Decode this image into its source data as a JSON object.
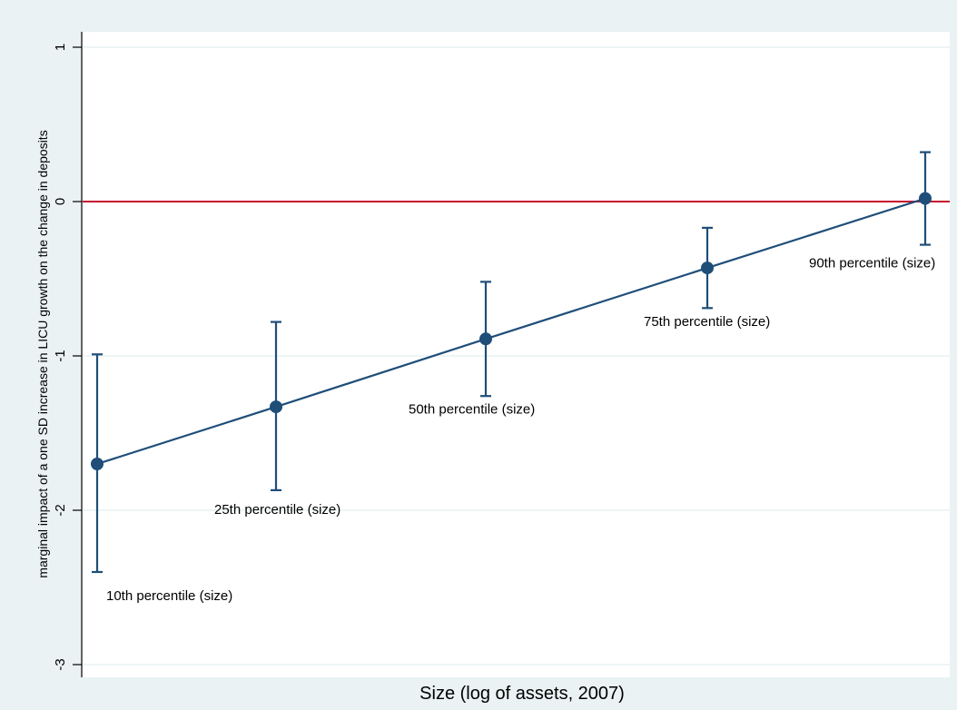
{
  "chart_data": {
    "type": "scatter",
    "title": "",
    "xlabel": "Size (log of assets, 2007)",
    "ylabel": "marginal impact of a one SD increase in LICU growth on the change in deposits",
    "ylim": [
      -3,
      1
    ],
    "yticks": [
      1,
      0,
      -1,
      -2,
      -3
    ],
    "grid": true,
    "reference_line": {
      "y": 0,
      "color": "#c8102e"
    },
    "series": [
      {
        "points": [
          {
            "label": "10th percentile (size)",
            "y": -1.7,
            "ci_low": -2.4,
            "ci_high": -0.99
          },
          {
            "label": "25th percentile (size)",
            "y": -1.33,
            "ci_low": -1.87,
            "ci_high": -0.78
          },
          {
            "label": "50th percentile (size)",
            "y": -0.89,
            "ci_low": -1.26,
            "ci_high": -0.52
          },
          {
            "label": "75th percentile (size)",
            "y": -0.43,
            "ci_low": -0.69,
            "ci_high": -0.17
          },
          {
            "label": "90th percentile (size)",
            "y": 0.02,
            "ci_low": -0.28,
            "ci_high": 0.32
          }
        ]
      }
    ],
    "colors": {
      "series": "#1f4e79",
      "background": "#eaf2f3",
      "plot": "#ffffff",
      "grid": "#eaf2f3"
    }
  }
}
